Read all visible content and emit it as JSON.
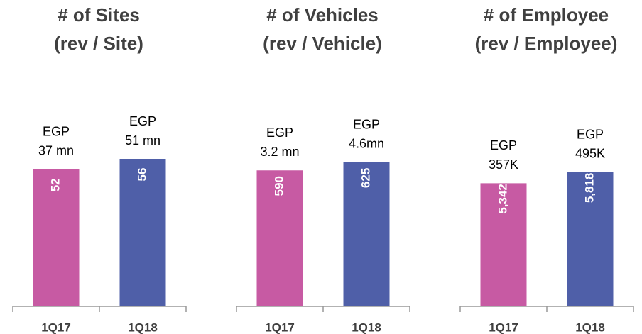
{
  "chart_data": [
    {
      "type": "bar",
      "title": "# of Sites",
      "subtitle": "(rev / Site)",
      "categories": [
        "1Q17",
        "1Q18"
      ],
      "values": [
        52,
        56
      ],
      "value_labels": [
        "52",
        "56"
      ],
      "annotations": [
        [
          "EGP",
          "37 mn"
        ],
        [
          "EGP",
          "51 mn"
        ]
      ],
      "colors": [
        "#c75aa3",
        "#4f5fa8"
      ],
      "ylim": [
        0,
        70
      ]
    },
    {
      "type": "bar",
      "title": "# of Vehicles",
      "subtitle": "(rev / Vehicle)",
      "categories": [
        "1Q17",
        "1Q18"
      ],
      "values": [
        590,
        625
      ],
      "value_labels": [
        "590",
        "625"
      ],
      "annotations": [
        [
          "EGP",
          "3.2 mn"
        ],
        [
          "EGP",
          "4.6mn"
        ]
      ],
      "colors": [
        "#c75aa3",
        "#4f5fa8"
      ],
      "ylim": [
        0,
        800
      ]
    },
    {
      "type": "bar",
      "title": "# of Employee",
      "subtitle": "(rev / Employee)",
      "categories": [
        "1Q17",
        "1Q18"
      ],
      "values": [
        5342,
        5818
      ],
      "value_labels": [
        "5,342",
        "5,818"
      ],
      "annotations": [
        [
          "EGP",
          "357K"
        ],
        [
          "EGP",
          "495K"
        ]
      ],
      "colors": [
        "#c75aa3",
        "#4f5fa8"
      ],
      "ylim": [
        0,
        8000
      ]
    }
  ]
}
